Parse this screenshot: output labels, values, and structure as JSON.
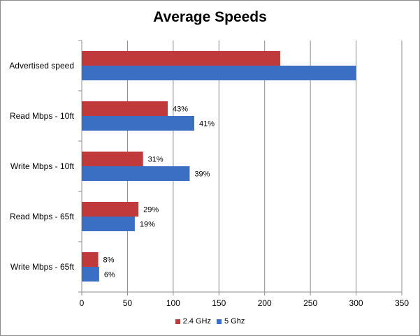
{
  "chart_data": {
    "type": "bar",
    "orientation": "horizontal",
    "title": "Average Speeds",
    "categories": [
      "Advertised speed",
      "Read Mbps - 10ft",
      "Write Mbps - 10ft",
      "Read Mbps - 65ft",
      "Write Mbps - 65ft"
    ],
    "series": [
      {
        "name": "2.4 GHz",
        "color": "#c0393b",
        "values": [
          217,
          94,
          67,
          62,
          18
        ],
        "labels": [
          "",
          "43%",
          "31%",
          "29%",
          "8%"
        ]
      },
      {
        "name": "5 Ghz",
        "color": "#3a6fc4",
        "values": [
          300,
          123,
          118,
          58,
          19
        ],
        "labels": [
          "",
          "41%",
          "39%",
          "19%",
          "6%"
        ]
      }
    ],
    "xlim": [
      0,
      350
    ],
    "xticks": [
      0,
      50,
      100,
      150,
      200,
      250,
      300,
      350
    ],
    "gridlines": true,
    "legend_position": "bottom"
  }
}
